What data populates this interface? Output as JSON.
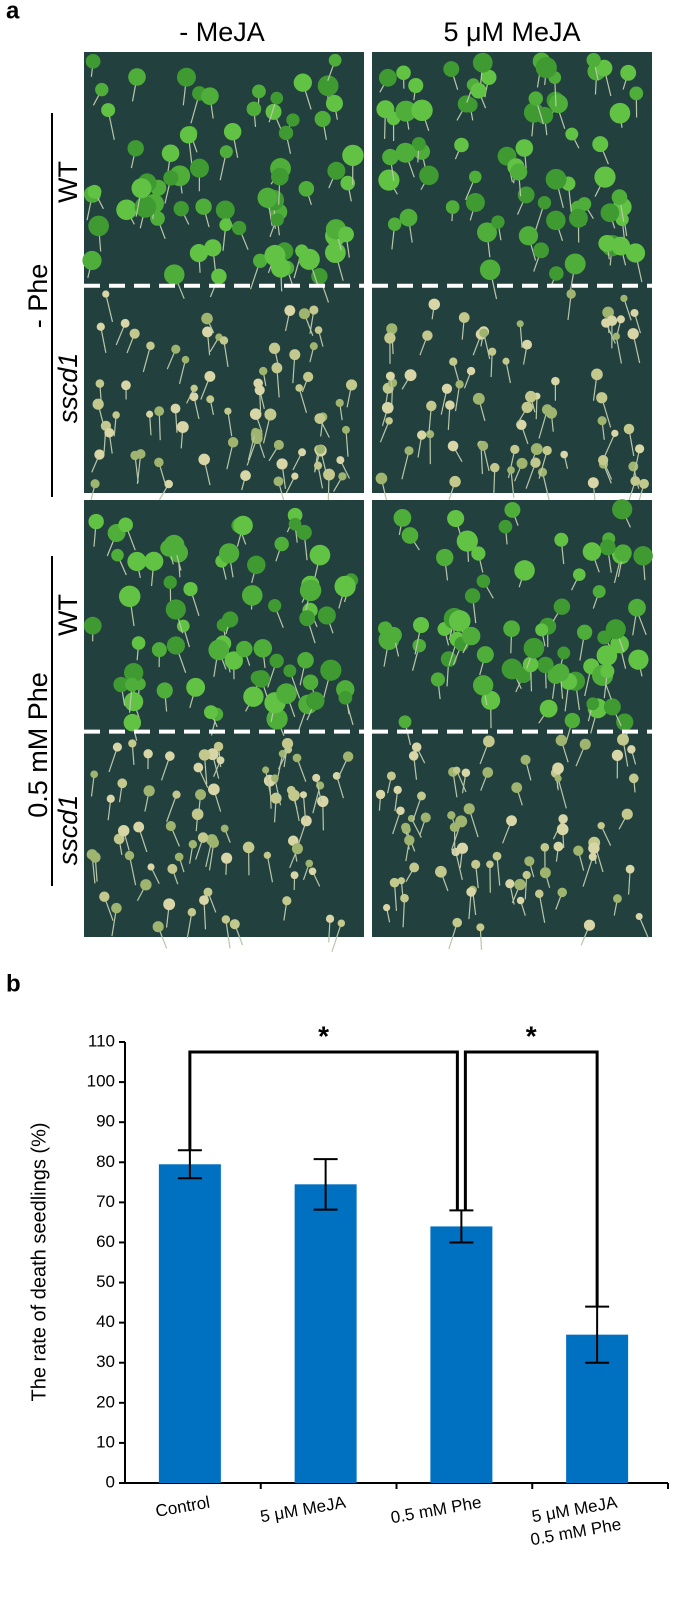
{
  "panel_a": {
    "label": "a",
    "columns": [
      "- MeJA",
      "5 μM MeJA"
    ],
    "rows": [
      {
        "treatment": "- Phe",
        "genotypes": [
          "WT",
          "sscd1"
        ]
      },
      {
        "treatment": "0.5 mM Phe",
        "genotypes": [
          "WT",
          "sscd1"
        ]
      }
    ]
  },
  "chart_data": {
    "type": "bar",
    "panel_label": "b",
    "y_label": "The rate of death seedlings (%)",
    "categories": [
      "Control",
      "5 μM MeJA",
      "0.5 mM Phe",
      [
        "5 μM MeJA",
        "0.5 mM Phe"
      ]
    ],
    "values": [
      79.5,
      74.5,
      64,
      37
    ],
    "errors": [
      3.5,
      6.3,
      4,
      7
    ],
    "color": "#0070c0",
    "ylim": [
      0,
      110
    ],
    "yticks": [
      0,
      10,
      20,
      30,
      40,
      50,
      60,
      70,
      80,
      90,
      100,
      110
    ],
    "significance_labels": [
      "*",
      "*"
    ]
  }
}
